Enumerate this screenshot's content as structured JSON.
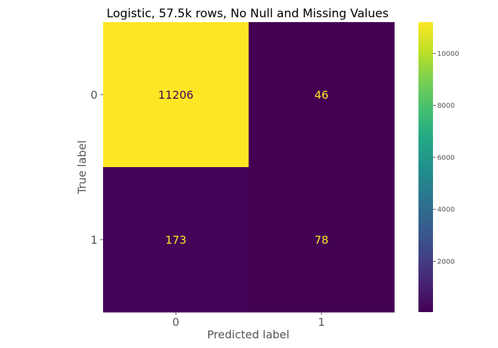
{
  "chart_data": {
    "type": "heatmap",
    "title": "Logistic, 57.5k rows, No Null and Missing Values",
    "xlabel": "Predicted label",
    "ylabel": "True label",
    "x_categories": [
      "0",
      "1"
    ],
    "y_categories": [
      "0",
      "1"
    ],
    "values": [
      [
        11206,
        46
      ],
      [
        173,
        78
      ]
    ],
    "colormap": "viridis",
    "colorbar": {
      "ticks": [
        2000,
        4000,
        6000,
        8000,
        10000
      ],
      "range": [
        46,
        11206
      ]
    },
    "grid": false,
    "colors": {
      "low": "#440154",
      "high": "#fde725",
      "text_on_low": "#fde725",
      "text_on_high": "#440154"
    }
  }
}
